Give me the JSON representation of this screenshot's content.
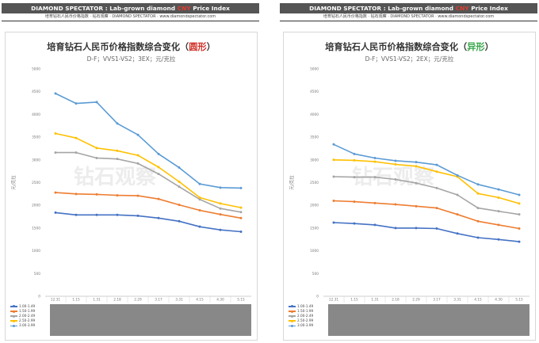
{
  "header": {
    "brand": "DIAMOND SPECTATOR : Lab-grown diamond ",
    "highlight": "CNY",
    "rest": " Price Index",
    "subline": "培育钻石人民币价格指数 · 钻石观察 · DIAMOND SPECTATOR · www.diamondspectator.com"
  },
  "watermark": "钻石观察",
  "colors": {
    "s1": "#4472c4",
    "s2": "#ed7d31",
    "s3": "#a5a5a5",
    "s4": "#ffc000",
    "s5": "#5b9bd5",
    "plot_box": "#888888"
  },
  "chart_data": [
    {
      "type": "line",
      "title_main": "培育钻石人民币价格指数综合变化（",
      "title_shape": "圆形",
      "title_end": "）",
      "subtitle": "D-F；VVS1-VS2；3EX；元/克拉",
      "ylabel": "元/克拉",
      "ylim": [
        0,
        5000
      ],
      "yticks": [
        0,
        500,
        1000,
        1500,
        2000,
        2500,
        3000,
        3500,
        4000,
        4500,
        5000
      ],
      "categories": [
        "12.31",
        "1.15",
        "1.31",
        "2.18",
        "2.29",
        "3.17",
        "3.31",
        "4.15",
        "4.30",
        "5.15"
      ],
      "series": [
        {
          "name": "1.00-1.49",
          "color": "#4472c4",
          "values": [
            1840,
            1790,
            1790,
            1790,
            1770,
            1720,
            1650,
            1530,
            1460,
            1420
          ]
        },
        {
          "name": "1.50-1.99",
          "color": "#ed7d31",
          "values": [
            2280,
            2250,
            2240,
            2220,
            2210,
            2140,
            2010,
            1890,
            1800,
            1720
          ]
        },
        {
          "name": "2.00-2.49",
          "color": "#a5a5a5",
          "values": [
            3160,
            3160,
            3040,
            3020,
            2920,
            2690,
            2410,
            2130,
            1930,
            1850
          ]
        },
        {
          "name": "2.50-2.99",
          "color": "#ffc000",
          "values": [
            3580,
            3480,
            3260,
            3200,
            3100,
            2840,
            2520,
            2170,
            2040,
            1950
          ]
        },
        {
          "name": "3.00-3.99",
          "color": "#5b9bd5",
          "values": [
            4460,
            4240,
            4270,
            3800,
            3550,
            3130,
            2830,
            2470,
            2390,
            2380
          ]
        }
      ]
    },
    {
      "type": "line",
      "title_main": "培育钻石人民币价格指数综合变化（",
      "title_shape": "异形",
      "title_end": "）",
      "subtitle": "D-F；VVS1-VS2；2EX；元/克拉",
      "ylabel": "元/克拉",
      "ylim": [
        0,
        5000
      ],
      "yticks": [
        0,
        500,
        1000,
        1500,
        2000,
        2500,
        3000,
        3500,
        4000,
        4500,
        5000
      ],
      "categories": [
        "12.31",
        "1.15",
        "1.31",
        "2.18",
        "2.29",
        "3.17",
        "3.31",
        "4.15",
        "4.30",
        "5.15"
      ],
      "series": [
        {
          "name": "1.00-1.49",
          "color": "#4472c4",
          "values": [
            1620,
            1600,
            1570,
            1500,
            1500,
            1490,
            1380,
            1290,
            1250,
            1200
          ]
        },
        {
          "name": "1.50-1.99",
          "color": "#ed7d31",
          "values": [
            2100,
            2080,
            2050,
            2020,
            1980,
            1940,
            1800,
            1650,
            1570,
            1490
          ]
        },
        {
          "name": "2.00-2.49",
          "color": "#a5a5a5",
          "values": [
            2630,
            2620,
            2620,
            2570,
            2490,
            2380,
            2230,
            1940,
            1870,
            1800
          ]
        },
        {
          "name": "2.50-2.99",
          "color": "#ffc000",
          "values": [
            3000,
            2990,
            2960,
            2900,
            2860,
            2740,
            2630,
            2260,
            2170,
            2040
          ]
        },
        {
          "name": "3.00-3.99",
          "color": "#5b9bd5",
          "values": [
            3340,
            3130,
            3040,
            2980,
            2950,
            2890,
            2660,
            2460,
            2350,
            2230
          ]
        }
      ]
    }
  ]
}
